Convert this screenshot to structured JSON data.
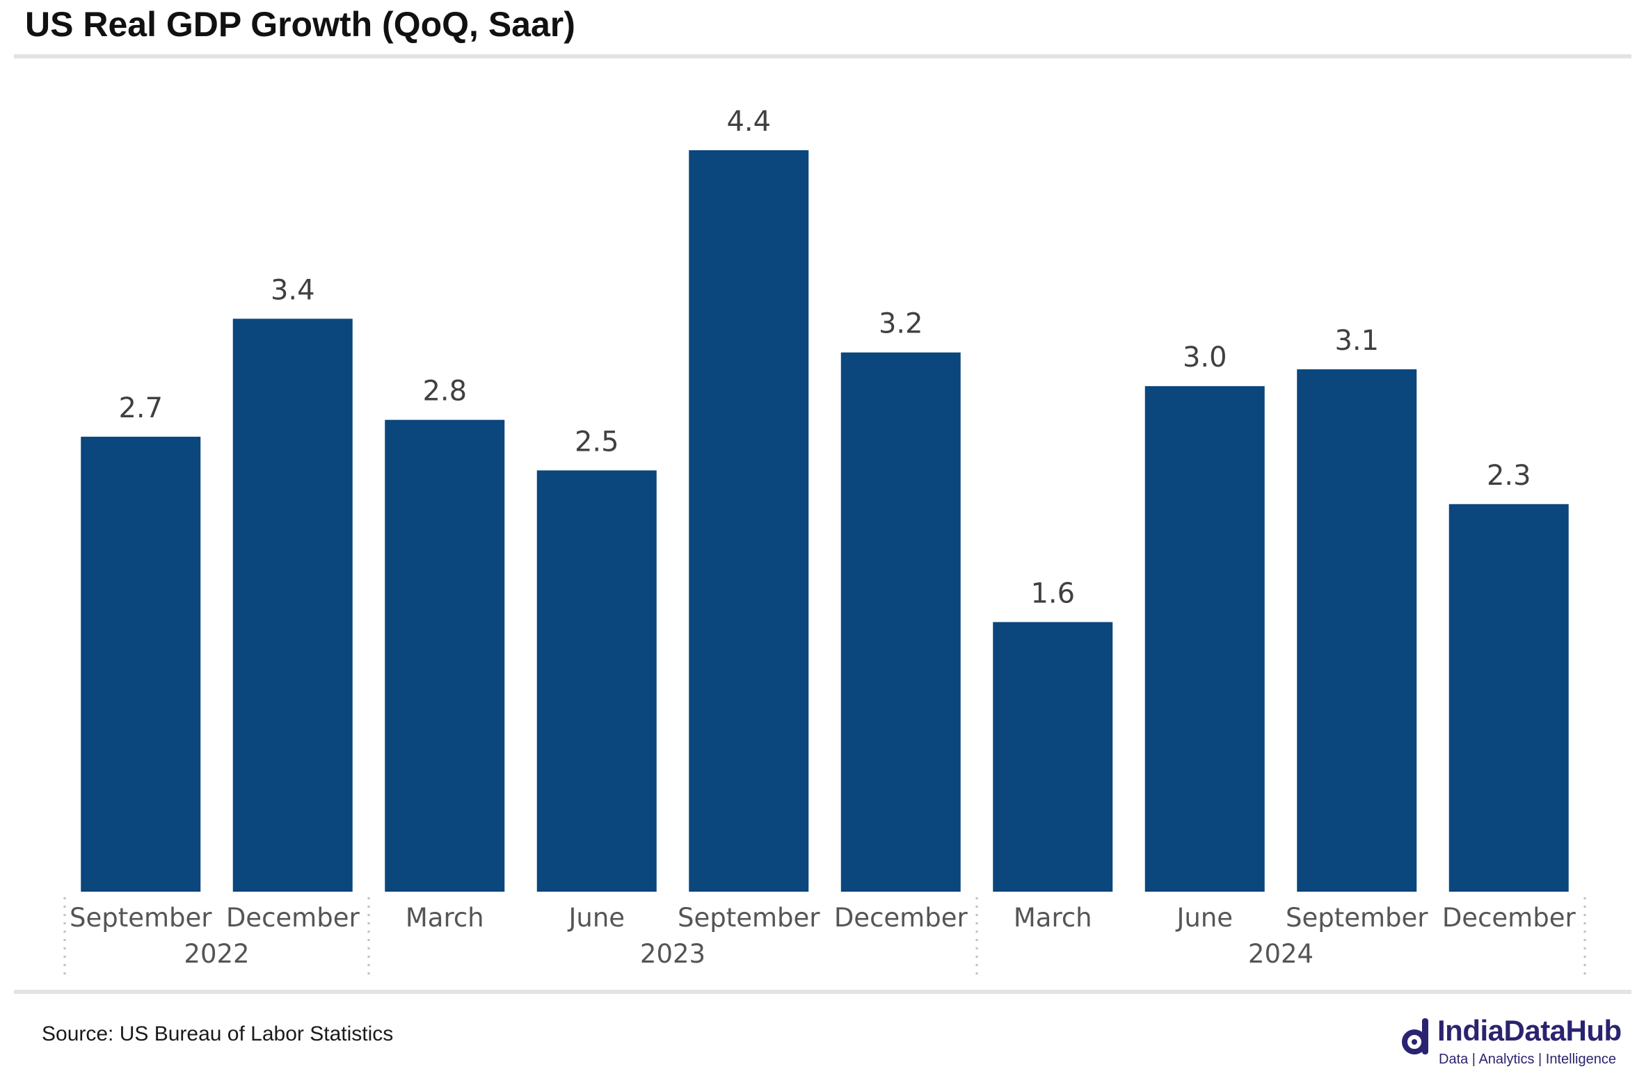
{
  "title": "US Real GDP Growth (QoQ, Saar)",
  "source": "Source: US Bureau of Labor Statistics",
  "brand": {
    "name": "IndiaDataHub",
    "tagline": "Data | Analytics | Intelligence",
    "color": "#2a2370"
  },
  "colors": {
    "bar": "#0b467d",
    "value_label": "#404040",
    "axis_label": "#555555",
    "divider": "#bfbfbf",
    "rule": "#e3e3e3"
  },
  "chart_data": {
    "type": "bar",
    "categories": [
      "September",
      "December",
      "March",
      "June",
      "September",
      "December",
      "March",
      "June",
      "September",
      "December"
    ],
    "groups": [
      {
        "label": "2022",
        "count": 2
      },
      {
        "label": "2023",
        "count": 4
      },
      {
        "label": "2024",
        "count": 4
      }
    ],
    "values": [
      2.7,
      3.4,
      2.8,
      2.5,
      4.4,
      3.2,
      1.6,
      3.0,
      3.1,
      2.3
    ],
    "value_labels": [
      "2.7",
      "3.4",
      "2.8",
      "2.5",
      "4.4",
      "3.2",
      "1.6",
      "3.0",
      "3.1",
      "2.3"
    ],
    "title": "US Real GDP Growth (QoQ, Saar)",
    "xlabel": "",
    "ylabel": "",
    "ylim": [
      0,
      4.4
    ],
    "grid": false,
    "legend": "none",
    "data_labels": true
  }
}
